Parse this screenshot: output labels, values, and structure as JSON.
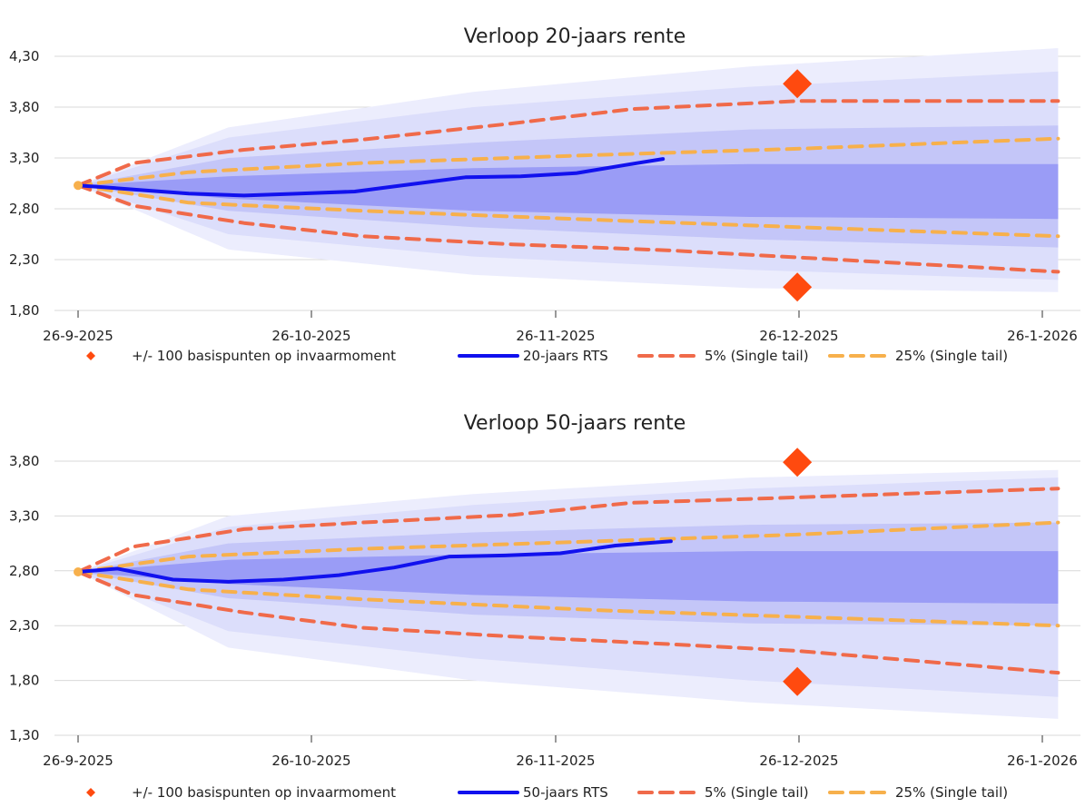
{
  "colors": {
    "fan_outer": "#ecedfd",
    "fan_mid": "#dcdefb",
    "fan_inner": "#c4c6f8",
    "fan_core": "#9a9cf6",
    "rts_line": "#1111ee",
    "line_5pct": "#f06a4a",
    "line_25pct": "#f7b04c",
    "marker": "#ff4a0f",
    "grid": "#d9d9d9"
  },
  "chart_data": [
    {
      "type": "line",
      "title": "Verloop 20-jaars rente",
      "xlabel": "",
      "ylabel": "",
      "x_ticks": [
        "26-9-2025",
        "26-10-2025",
        "26-11-2025",
        "26-12-2025",
        "26-1-2026"
      ],
      "y_ticks": [
        "4,30",
        "3,80",
        "3,30",
        "2,80",
        "2,30",
        "1,80"
      ],
      "xlim": [
        "2025-09-26",
        "2026-01-26"
      ],
      "ylim": [
        1.8,
        4.3
      ],
      "grid": true,
      "legend_position": "bottom",
      "series": [
        {
          "name": "20-jaars RTS",
          "style": "solid",
          "points": [
            [
              "2025-09-26",
              3.03
            ],
            [
              "2025-10-03",
              2.99
            ],
            [
              "2025-10-10",
              2.95
            ],
            [
              "2025-10-17",
              2.93
            ],
            [
              "2025-10-24",
              2.95
            ],
            [
              "2025-10-31",
              2.97
            ],
            [
              "2025-11-07",
              3.04
            ],
            [
              "2025-11-14",
              3.11
            ],
            [
              "2025-11-21",
              3.12
            ],
            [
              "2025-11-28",
              3.15
            ],
            [
              "2025-12-05",
              3.24
            ],
            [
              "2025-12-09",
              3.29
            ]
          ]
        },
        {
          "name": "5% (Single tail)",
          "style": "dashed",
          "points": [
            [
              "2025-09-26",
              3.03
            ],
            [
              "2025-10-03",
              3.25
            ],
            [
              "2025-10-17",
              3.38
            ],
            [
              "2025-11-01",
              3.48
            ],
            [
              "2025-11-20",
              3.64
            ],
            [
              "2025-12-05",
              3.78
            ],
            [
              "2025-12-26",
              3.86
            ],
            [
              "2026-01-28",
              3.86
            ]
          ]
        },
        {
          "points": [
            [
              "2025-09-26",
              3.03
            ],
            [
              "2025-10-03",
              2.83
            ],
            [
              "2025-10-17",
              2.66
            ],
            [
              "2025-11-01",
              2.53
            ],
            [
              "2025-11-20",
              2.45
            ],
            [
              "2025-12-10",
              2.39
            ],
            [
              "2026-01-28",
              2.18
            ]
          ],
          "style": "dashed"
        },
        {
          "name": "25% (Single tail)",
          "style": "dashed",
          "points": [
            [
              "2025-09-26",
              3.03
            ],
            [
              "2025-10-10",
              3.16
            ],
            [
              "2025-11-01",
              3.25
            ],
            [
              "2025-12-01",
              3.33
            ],
            [
              "2025-12-26",
              3.39
            ],
            [
              "2026-01-28",
              3.49
            ]
          ]
        },
        {
          "points": [
            [
              "2025-09-26",
              3.03
            ],
            [
              "2025-10-10",
              2.86
            ],
            [
              "2025-11-01",
              2.78
            ],
            [
              "2025-12-01",
              2.69
            ],
            [
              "2025-12-26",
              2.62
            ],
            [
              "2026-01-28",
              2.53
            ]
          ],
          "style": "dashed"
        }
      ],
      "markers": {
        "name": "+/- 100 basispunten op invaarmoment",
        "points": [
          [
            "2025-12-26",
            4.03
          ],
          [
            "2025-12-26",
            2.03
          ]
        ]
      },
      "fan_bands": [
        {
          "upper": [
            [
              "2025-09-26",
              3.03
            ],
            [
              "2025-10-15",
              3.6
            ],
            [
              "2025-11-15",
              3.95
            ],
            [
              "2025-12-20",
              4.2
            ],
            [
              "2026-01-28",
              4.38
            ]
          ],
          "lower": [
            [
              "2025-09-26",
              3.03
            ],
            [
              "2025-10-15",
              2.4
            ],
            [
              "2025-11-15",
              2.15
            ],
            [
              "2025-12-20",
              2.02
            ],
            [
              "2026-01-28",
              1.98
            ]
          ]
        },
        {
          "upper": [
            [
              "2025-09-26",
              3.03
            ],
            [
              "2025-10-15",
              3.5
            ],
            [
              "2025-11-15",
              3.8
            ],
            [
              "2025-12-20",
              4.0
            ],
            [
              "2026-01-28",
              4.15
            ]
          ],
          "lower": [
            [
              "2025-09-26",
              3.03
            ],
            [
              "2025-10-15",
              2.55
            ],
            [
              "2025-11-15",
              2.33
            ],
            [
              "2025-12-20",
              2.2
            ],
            [
              "2026-01-28",
              2.1
            ]
          ]
        },
        {
          "upper": [
            [
              "2025-09-26",
              3.03
            ],
            [
              "2025-10-15",
              3.3
            ],
            [
              "2025-11-15",
              3.45
            ],
            [
              "2025-12-20",
              3.58
            ],
            [
              "2026-01-28",
              3.62
            ]
          ],
          "lower": [
            [
              "2025-09-26",
              3.03
            ],
            [
              "2025-10-15",
              2.78
            ],
            [
              "2025-11-15",
              2.62
            ],
            [
              "2025-12-20",
              2.5
            ],
            [
              "2026-01-28",
              2.42
            ]
          ]
        },
        {
          "upper": [
            [
              "2025-09-26",
              3.03
            ],
            [
              "2025-10-15",
              3.12
            ],
            [
              "2025-11-15",
              3.2
            ],
            [
              "2025-12-20",
              3.24
            ],
            [
              "2026-01-28",
              3.24
            ]
          ],
          "lower": [
            [
              "2025-09-26",
              3.03
            ],
            [
              "2025-10-15",
              2.9
            ],
            [
              "2025-11-15",
              2.78
            ],
            [
              "2025-12-20",
              2.72
            ],
            [
              "2026-01-28",
              2.7
            ]
          ]
        }
      ]
    },
    {
      "type": "line",
      "title": "Verloop 50-jaars rente",
      "xlabel": "",
      "ylabel": "",
      "x_ticks": [
        "26-9-2025",
        "26-10-2025",
        "26-11-2025",
        "26-12-2025",
        "26-1-2026"
      ],
      "y_ticks": [
        "3,80",
        "3,30",
        "2,80",
        "2,30",
        "1,80",
        "1,30"
      ],
      "xlim": [
        "2025-09-26",
        "2026-01-26"
      ],
      "ylim": [
        1.3,
        3.8
      ],
      "grid": true,
      "legend_position": "bottom",
      "series": [
        {
          "name": "50-jaars RTS",
          "style": "solid",
          "points": [
            [
              "2025-09-26",
              2.79
            ],
            [
              "2025-10-01",
              2.82
            ],
            [
              "2025-10-08",
              2.72
            ],
            [
              "2025-10-15",
              2.7
            ],
            [
              "2025-10-22",
              2.72
            ],
            [
              "2025-10-29",
              2.76
            ],
            [
              "2025-11-05",
              2.83
            ],
            [
              "2025-11-12",
              2.93
            ],
            [
              "2025-11-19",
              2.94
            ],
            [
              "2025-11-26",
              2.96
            ],
            [
              "2025-12-03",
              3.03
            ],
            [
              "2025-12-10",
              3.07
            ]
          ]
        },
        {
          "name": "5% (Single tail)",
          "style": "dashed",
          "points": [
            [
              "2025-09-26",
              2.79
            ],
            [
              "2025-10-03",
              3.02
            ],
            [
              "2025-10-17",
              3.18
            ],
            [
              "2025-11-01",
              3.24
            ],
            [
              "2025-11-20",
              3.31
            ],
            [
              "2025-12-05",
              3.42
            ],
            [
              "2025-12-26",
              3.47
            ],
            [
              "2026-01-28",
              3.55
            ]
          ]
        },
        {
          "points": [
            [
              "2025-09-26",
              2.79
            ],
            [
              "2025-10-03",
              2.58
            ],
            [
              "2025-10-17",
              2.42
            ],
            [
              "2025-11-01",
              2.28
            ],
            [
              "2025-11-20",
              2.2
            ],
            [
              "2025-12-10",
              2.13
            ],
            [
              "2025-12-26",
              2.07
            ],
            [
              "2026-01-28",
              1.87
            ]
          ],
          "style": "dashed"
        },
        {
          "name": "25% (Single tail)",
          "style": "dashed",
          "points": [
            [
              "2025-09-26",
              2.79
            ],
            [
              "2025-10-10",
              2.93
            ],
            [
              "2025-11-01",
              3.0
            ],
            [
              "2025-12-01",
              3.07
            ],
            [
              "2025-12-26",
              3.13
            ],
            [
              "2026-01-28",
              3.24
            ]
          ]
        },
        {
          "points": [
            [
              "2025-09-26",
              2.79
            ],
            [
              "2025-10-10",
              2.63
            ],
            [
              "2025-11-01",
              2.54
            ],
            [
              "2025-12-01",
              2.44
            ],
            [
              "2025-12-26",
              2.38
            ],
            [
              "2026-01-28",
              2.3
            ]
          ],
          "style": "dashed"
        }
      ],
      "markers": {
        "name": "+/- 100 basispunten op invaarmoment",
        "points": [
          [
            "2025-12-26",
            3.79
          ],
          [
            "2025-12-26",
            1.79
          ]
        ]
      },
      "fan_bands": [
        {
          "upper": [
            [
              "2025-09-26",
              2.79
            ],
            [
              "2025-10-15",
              3.3
            ],
            [
              "2025-11-15",
              3.5
            ],
            [
              "2025-12-20",
              3.65
            ],
            [
              "2026-01-28",
              3.72
            ]
          ],
          "lower": [
            [
              "2025-09-26",
              2.79
            ],
            [
              "2025-10-15",
              2.1
            ],
            [
              "2025-11-15",
              1.8
            ],
            [
              "2025-12-20",
              1.6
            ],
            [
              "2026-01-28",
              1.45
            ]
          ]
        },
        {
          "upper": [
            [
              "2025-09-26",
              2.79
            ],
            [
              "2025-10-15",
              3.2
            ],
            [
              "2025-11-15",
              3.4
            ],
            [
              "2025-12-20",
              3.55
            ],
            [
              "2026-01-28",
              3.65
            ]
          ],
          "lower": [
            [
              "2025-09-26",
              2.79
            ],
            [
              "2025-10-15",
              2.25
            ],
            [
              "2025-11-15",
              2.0
            ],
            [
              "2025-12-20",
              1.8
            ],
            [
              "2026-01-28",
              1.65
            ]
          ]
        },
        {
          "upper": [
            [
              "2025-09-26",
              2.79
            ],
            [
              "2025-10-15",
              3.05
            ],
            [
              "2025-11-15",
              3.15
            ],
            [
              "2025-12-20",
              3.22
            ],
            [
              "2026-01-28",
              3.24
            ]
          ],
          "lower": [
            [
              "2025-09-26",
              2.79
            ],
            [
              "2025-10-15",
              2.55
            ],
            [
              "2025-11-15",
              2.4
            ],
            [
              "2025-12-20",
              2.32
            ],
            [
              "2026-01-28",
              2.3
            ]
          ]
        },
        {
          "upper": [
            [
              "2025-09-26",
              2.79
            ],
            [
              "2025-10-15",
              2.9
            ],
            [
              "2025-11-15",
              2.95
            ],
            [
              "2025-12-20",
              2.98
            ],
            [
              "2026-01-28",
              2.98
            ]
          ],
          "lower": [
            [
              "2025-09-26",
              2.79
            ],
            [
              "2025-10-15",
              2.68
            ],
            [
              "2025-11-15",
              2.58
            ],
            [
              "2025-12-20",
              2.52
            ],
            [
              "2026-01-28",
              2.5
            ]
          ]
        }
      ]
    }
  ]
}
